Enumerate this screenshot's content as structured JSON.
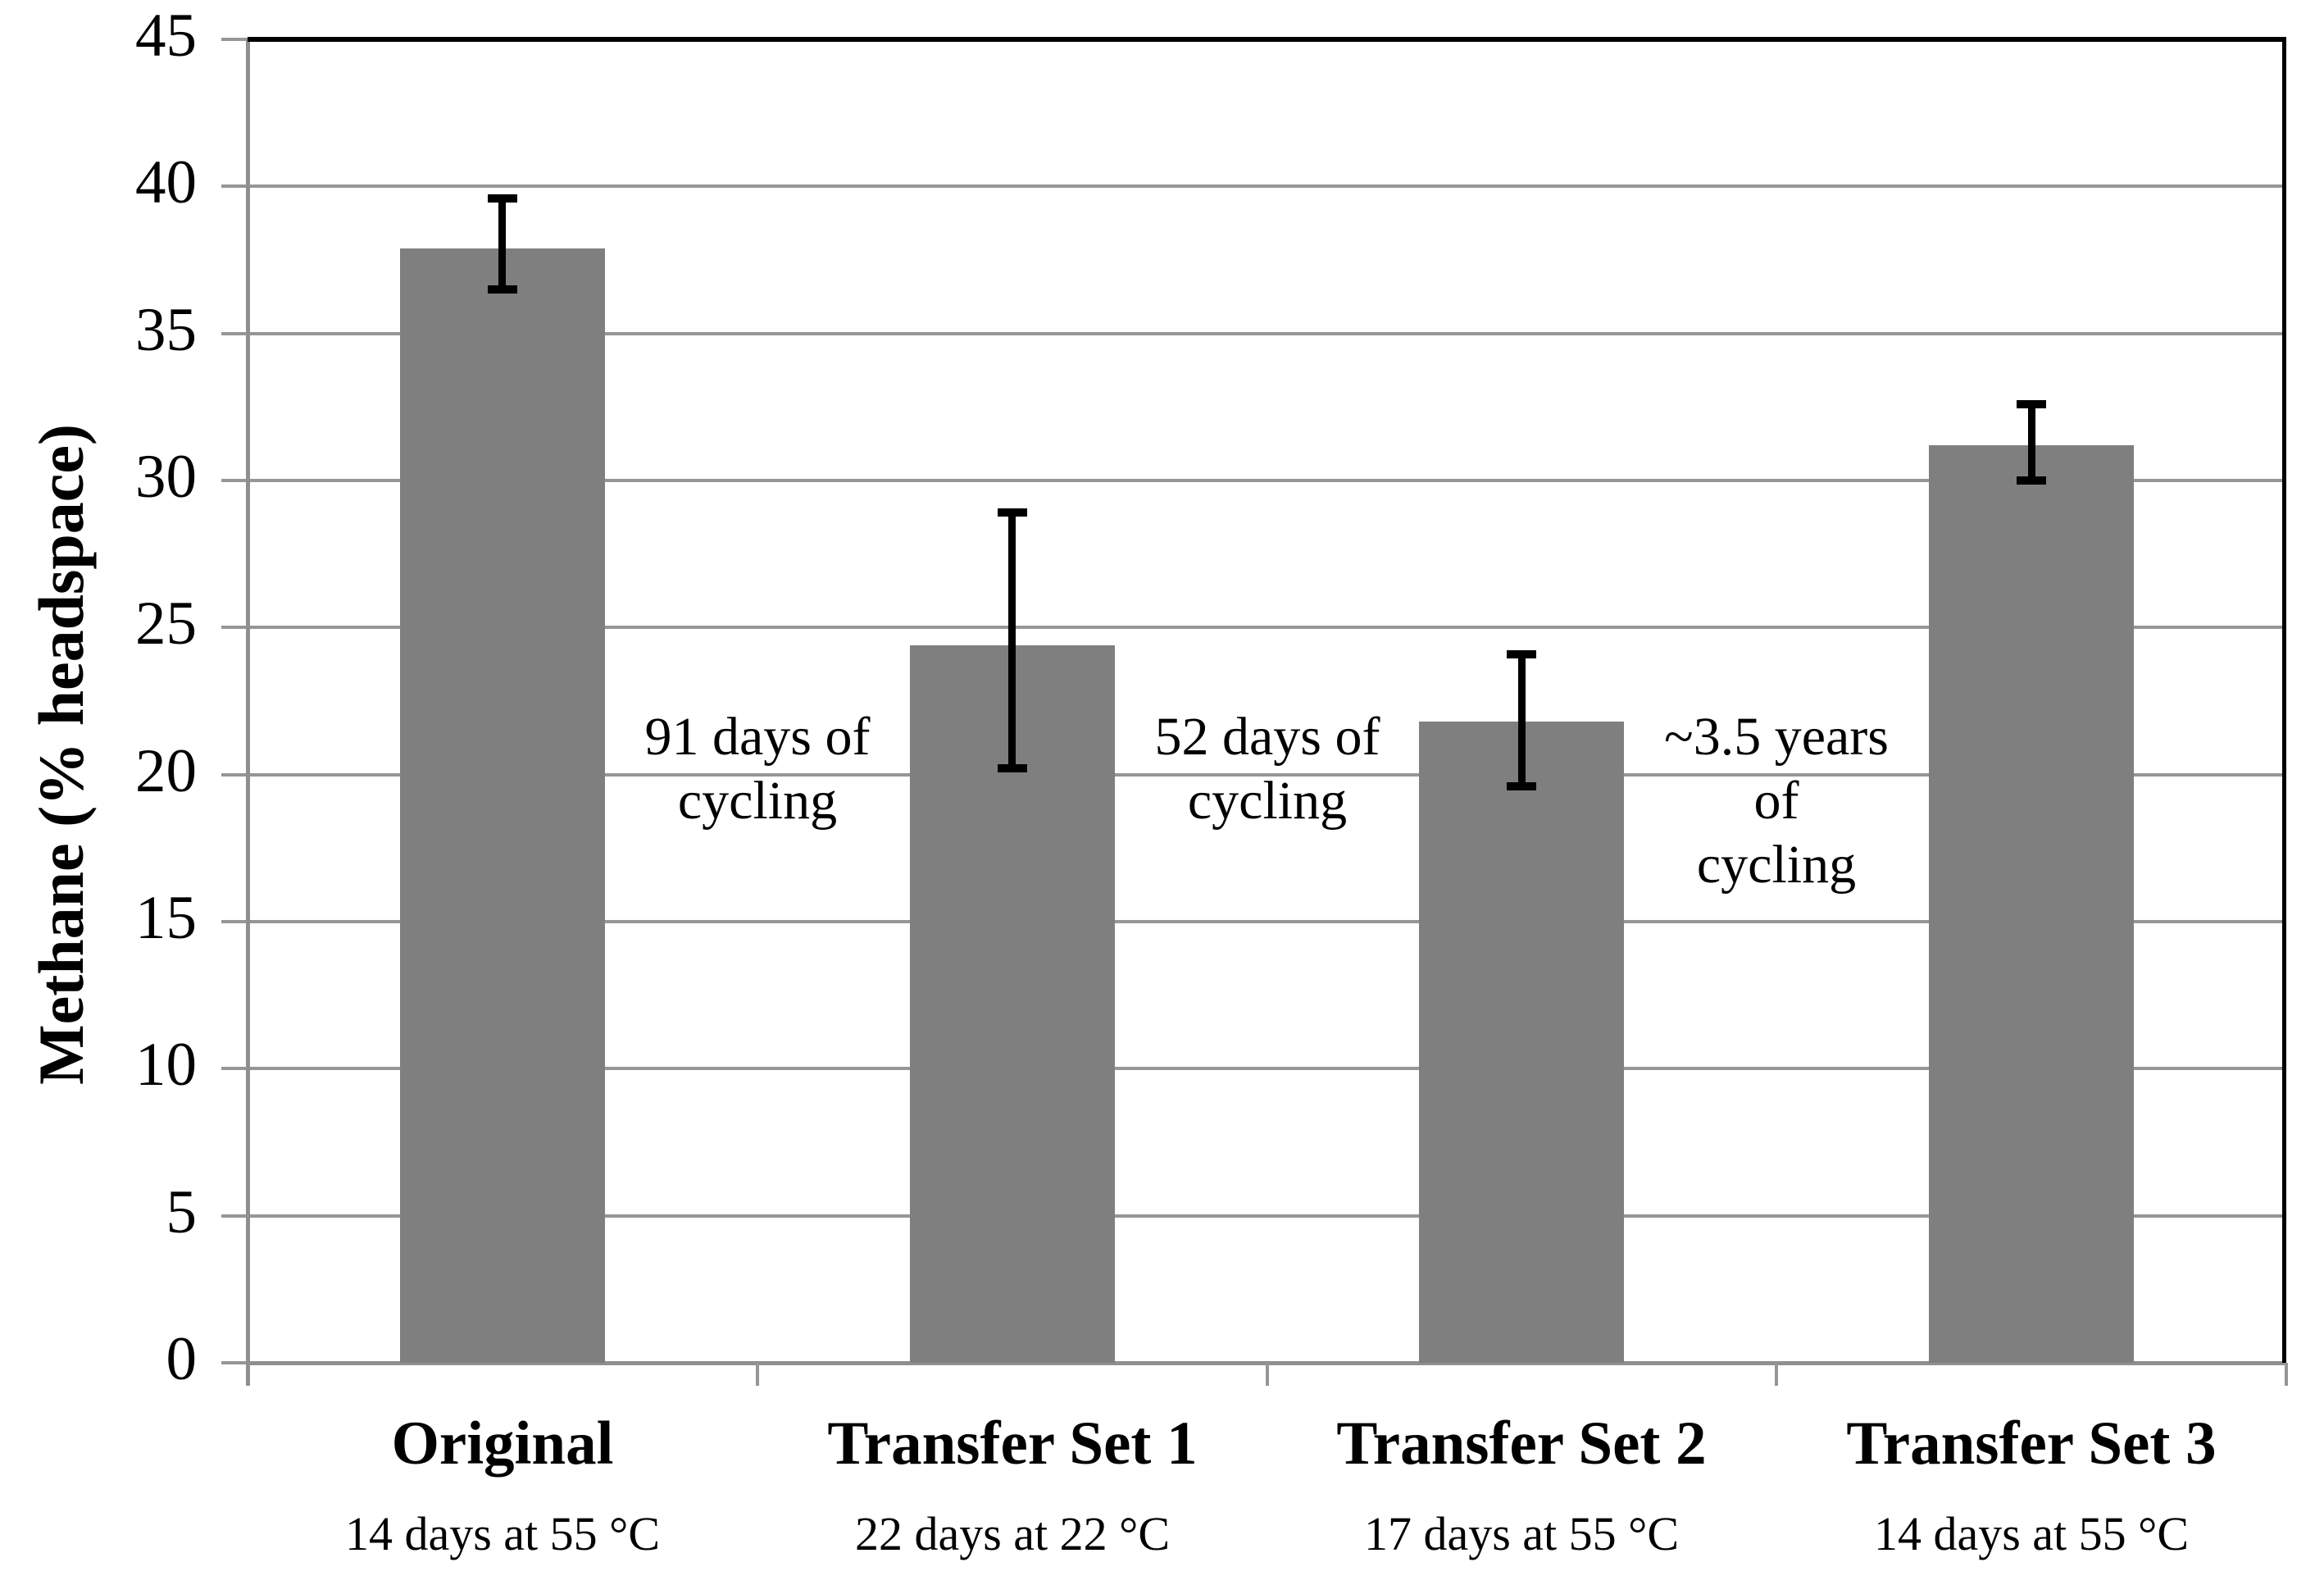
{
  "figure": {
    "background_color": "#ffffff",
    "text_color": "#000000"
  },
  "chart_data": {
    "type": "bar",
    "title": "",
    "xlabel": "",
    "ylabel": "Methane (% headspace)",
    "yaxis": {
      "min": 0,
      "max": 45,
      "tick_step": 5,
      "ticks": [
        0,
        5,
        10,
        15,
        20,
        25,
        30,
        35,
        40,
        45
      ],
      "tick_labels": [
        "0",
        "5",
        "10",
        "15",
        "20",
        "25",
        "30",
        "35",
        "40",
        "45"
      ]
    },
    "grid": true,
    "legend": false,
    "categories": [
      "Original",
      "Transfer Set 1",
      "Transfer Set 2",
      "Transfer Set 3"
    ],
    "category_sublabels": [
      "14 days at 55 °C",
      "22 days at 22 °C",
      "17 days at 55 °C",
      "14 days at 55 °C"
    ],
    "values": [
      37.9,
      24.4,
      21.8,
      31.2
    ],
    "error_upper": [
      39.6,
      28.9,
      24.1,
      32.6
    ],
    "error_lower": [
      36.5,
      20.2,
      19.6,
      30.0
    ],
    "annotations": [
      {
        "lines": [
          "91 days of",
          "cycling"
        ],
        "between_categories": [
          0,
          1
        ],
        "at_value": 20
      },
      {
        "lines": [
          "52 days of",
          "cycling"
        ],
        "between_categories": [
          1,
          2
        ],
        "at_value": 20
      },
      {
        "lines": [
          "~3.5 years",
          "of",
          "cycling"
        ],
        "between_categories": [
          2,
          3
        ],
        "at_value": 20
      }
    ],
    "colors": {
      "bar_fill": "#7f7f7f",
      "gridline": "#969696",
      "axis_line": "#8f8f8f",
      "plot_border": "#000000",
      "error_bar": "#000000"
    }
  }
}
